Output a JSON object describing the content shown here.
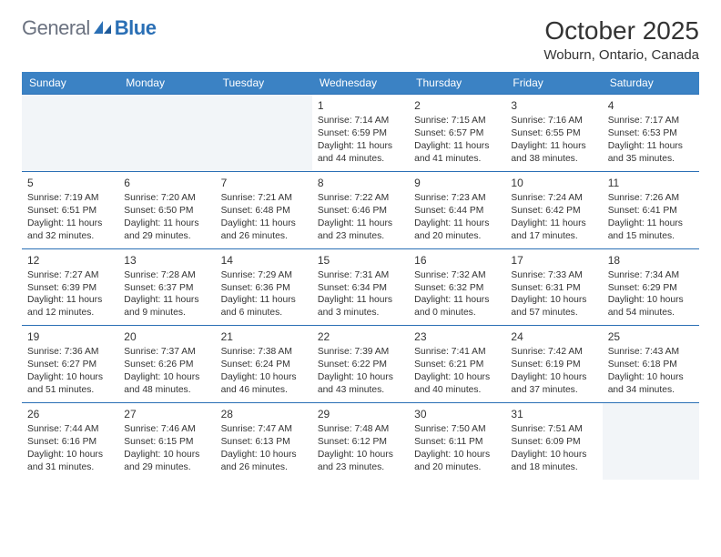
{
  "logo": {
    "textA": "General",
    "textB": "Blue"
  },
  "title": "October 2025",
  "location": "Woburn, Ontario, Canada",
  "colors": {
    "header_bg": "#3b82c4",
    "header_text": "#ffffff",
    "week_border": "#2a6fb5",
    "logo_gray": "#6b7280",
    "logo_blue": "#2a6fb5",
    "cell_text": "#333333",
    "page_bg": "#ffffff"
  },
  "day_headers": [
    "Sunday",
    "Monday",
    "Tuesday",
    "Wednesday",
    "Thursday",
    "Friday",
    "Saturday"
  ],
  "weeks": [
    [
      {
        "day": "",
        "lines": [
          "",
          "",
          "",
          ""
        ],
        "lead": true
      },
      {
        "day": "",
        "lines": [
          "",
          "",
          "",
          ""
        ],
        "lead": true
      },
      {
        "day": "",
        "lines": [
          "",
          "",
          "",
          ""
        ],
        "lead": true
      },
      {
        "day": "1",
        "lines": [
          "Sunrise: 7:14 AM",
          "Sunset: 6:59 PM",
          "Daylight: 11 hours",
          "and 44 minutes."
        ]
      },
      {
        "day": "2",
        "lines": [
          "Sunrise: 7:15 AM",
          "Sunset: 6:57 PM",
          "Daylight: 11 hours",
          "and 41 minutes."
        ]
      },
      {
        "day": "3",
        "lines": [
          "Sunrise: 7:16 AM",
          "Sunset: 6:55 PM",
          "Daylight: 11 hours",
          "and 38 minutes."
        ]
      },
      {
        "day": "4",
        "lines": [
          "Sunrise: 7:17 AM",
          "Sunset: 6:53 PM",
          "Daylight: 11 hours",
          "and 35 minutes."
        ]
      }
    ],
    [
      {
        "day": "5",
        "lines": [
          "Sunrise: 7:19 AM",
          "Sunset: 6:51 PM",
          "Daylight: 11 hours",
          "and 32 minutes."
        ]
      },
      {
        "day": "6",
        "lines": [
          "Sunrise: 7:20 AM",
          "Sunset: 6:50 PM",
          "Daylight: 11 hours",
          "and 29 minutes."
        ]
      },
      {
        "day": "7",
        "lines": [
          "Sunrise: 7:21 AM",
          "Sunset: 6:48 PM",
          "Daylight: 11 hours",
          "and 26 minutes."
        ]
      },
      {
        "day": "8",
        "lines": [
          "Sunrise: 7:22 AM",
          "Sunset: 6:46 PM",
          "Daylight: 11 hours",
          "and 23 minutes."
        ]
      },
      {
        "day": "9",
        "lines": [
          "Sunrise: 7:23 AM",
          "Sunset: 6:44 PM",
          "Daylight: 11 hours",
          "and 20 minutes."
        ]
      },
      {
        "day": "10",
        "lines": [
          "Sunrise: 7:24 AM",
          "Sunset: 6:42 PM",
          "Daylight: 11 hours",
          "and 17 minutes."
        ]
      },
      {
        "day": "11",
        "lines": [
          "Sunrise: 7:26 AM",
          "Sunset: 6:41 PM",
          "Daylight: 11 hours",
          "and 15 minutes."
        ]
      }
    ],
    [
      {
        "day": "12",
        "lines": [
          "Sunrise: 7:27 AM",
          "Sunset: 6:39 PM",
          "Daylight: 11 hours",
          "and 12 minutes."
        ]
      },
      {
        "day": "13",
        "lines": [
          "Sunrise: 7:28 AM",
          "Sunset: 6:37 PM",
          "Daylight: 11 hours",
          "and 9 minutes."
        ]
      },
      {
        "day": "14",
        "lines": [
          "Sunrise: 7:29 AM",
          "Sunset: 6:36 PM",
          "Daylight: 11 hours",
          "and 6 minutes."
        ]
      },
      {
        "day": "15",
        "lines": [
          "Sunrise: 7:31 AM",
          "Sunset: 6:34 PM",
          "Daylight: 11 hours",
          "and 3 minutes."
        ]
      },
      {
        "day": "16",
        "lines": [
          "Sunrise: 7:32 AM",
          "Sunset: 6:32 PM",
          "Daylight: 11 hours",
          "and 0 minutes."
        ]
      },
      {
        "day": "17",
        "lines": [
          "Sunrise: 7:33 AM",
          "Sunset: 6:31 PM",
          "Daylight: 10 hours",
          "and 57 minutes."
        ]
      },
      {
        "day": "18",
        "lines": [
          "Sunrise: 7:34 AM",
          "Sunset: 6:29 PM",
          "Daylight: 10 hours",
          "and 54 minutes."
        ]
      }
    ],
    [
      {
        "day": "19",
        "lines": [
          "Sunrise: 7:36 AM",
          "Sunset: 6:27 PM",
          "Daylight: 10 hours",
          "and 51 minutes."
        ]
      },
      {
        "day": "20",
        "lines": [
          "Sunrise: 7:37 AM",
          "Sunset: 6:26 PM",
          "Daylight: 10 hours",
          "and 48 minutes."
        ]
      },
      {
        "day": "21",
        "lines": [
          "Sunrise: 7:38 AM",
          "Sunset: 6:24 PM",
          "Daylight: 10 hours",
          "and 46 minutes."
        ]
      },
      {
        "day": "22",
        "lines": [
          "Sunrise: 7:39 AM",
          "Sunset: 6:22 PM",
          "Daylight: 10 hours",
          "and 43 minutes."
        ]
      },
      {
        "day": "23",
        "lines": [
          "Sunrise: 7:41 AM",
          "Sunset: 6:21 PM",
          "Daylight: 10 hours",
          "and 40 minutes."
        ]
      },
      {
        "day": "24",
        "lines": [
          "Sunrise: 7:42 AM",
          "Sunset: 6:19 PM",
          "Daylight: 10 hours",
          "and 37 minutes."
        ]
      },
      {
        "day": "25",
        "lines": [
          "Sunrise: 7:43 AM",
          "Sunset: 6:18 PM",
          "Daylight: 10 hours",
          "and 34 minutes."
        ]
      }
    ],
    [
      {
        "day": "26",
        "lines": [
          "Sunrise: 7:44 AM",
          "Sunset: 6:16 PM",
          "Daylight: 10 hours",
          "and 31 minutes."
        ]
      },
      {
        "day": "27",
        "lines": [
          "Sunrise: 7:46 AM",
          "Sunset: 6:15 PM",
          "Daylight: 10 hours",
          "and 29 minutes."
        ]
      },
      {
        "day": "28",
        "lines": [
          "Sunrise: 7:47 AM",
          "Sunset: 6:13 PM",
          "Daylight: 10 hours",
          "and 26 minutes."
        ]
      },
      {
        "day": "29",
        "lines": [
          "Sunrise: 7:48 AM",
          "Sunset: 6:12 PM",
          "Daylight: 10 hours",
          "and 23 minutes."
        ]
      },
      {
        "day": "30",
        "lines": [
          "Sunrise: 7:50 AM",
          "Sunset: 6:11 PM",
          "Daylight: 10 hours",
          "and 20 minutes."
        ]
      },
      {
        "day": "31",
        "lines": [
          "Sunrise: 7:51 AM",
          "Sunset: 6:09 PM",
          "Daylight: 10 hours",
          "and 18 minutes."
        ]
      },
      {
        "day": "",
        "lines": [
          "",
          "",
          "",
          ""
        ],
        "lead": true
      }
    ]
  ]
}
